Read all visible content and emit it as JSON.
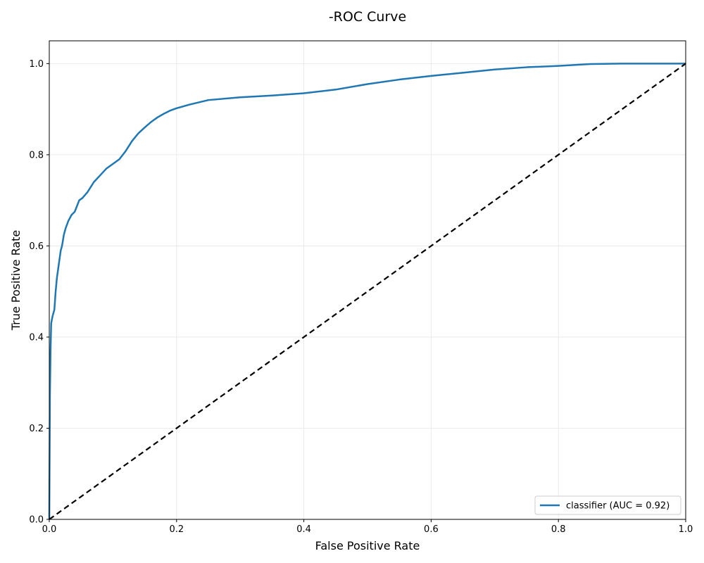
{
  "chart_data": {
    "type": "line",
    "title": "-ROC Curve",
    "xlabel": "False Positive Rate",
    "ylabel": "True Positive Rate",
    "xlim": [
      0.0,
      1.0
    ],
    "ylim": [
      0.0,
      1.05
    ],
    "xticks": [
      "0.0",
      "0.2",
      "0.4",
      "0.6",
      "0.8",
      "1.0"
    ],
    "yticks": [
      "0.0",
      "0.2",
      "0.4",
      "0.6",
      "0.8",
      "1.0"
    ],
    "grid": true,
    "legend_position": "lower-right",
    "colors": {
      "roc": "#1f77b4",
      "chance": "#000000"
    },
    "series": [
      {
        "name": "classifier (AUC = 0.92)",
        "style": "solid",
        "color": "#1f77b4",
        "x": [
          0.0,
          0.001,
          0.002,
          0.003,
          0.005,
          0.008,
          0.01,
          0.012,
          0.015,
          0.018,
          0.02,
          0.023,
          0.026,
          0.03,
          0.035,
          0.04,
          0.047,
          0.052,
          0.06,
          0.07,
          0.08,
          0.09,
          0.1,
          0.11,
          0.12,
          0.13,
          0.14,
          0.15,
          0.16,
          0.17,
          0.18,
          0.19,
          0.2,
          0.22,
          0.25,
          0.3,
          0.35,
          0.4,
          0.45,
          0.5,
          0.55,
          0.6,
          0.65,
          0.7,
          0.75,
          0.8,
          0.85,
          0.9,
          0.95,
          1.0
        ],
        "y": [
          0.0,
          0.27,
          0.37,
          0.43,
          0.445,
          0.46,
          0.5,
          0.53,
          0.56,
          0.59,
          0.6,
          0.625,
          0.64,
          0.655,
          0.668,
          0.675,
          0.7,
          0.705,
          0.718,
          0.74,
          0.755,
          0.77,
          0.78,
          0.79,
          0.808,
          0.83,
          0.847,
          0.86,
          0.872,
          0.882,
          0.89,
          0.897,
          0.902,
          0.91,
          0.92,
          0.926,
          0.93,
          0.935,
          0.943,
          0.955,
          0.965,
          0.973,
          0.98,
          0.987,
          0.992,
          0.995,
          0.999,
          1.0,
          1.0,
          1.0
        ]
      },
      {
        "name": "",
        "style": "dashed",
        "color": "#000000",
        "x": [
          0.0,
          1.0
        ],
        "y": [
          0.0,
          1.0
        ]
      }
    ]
  }
}
